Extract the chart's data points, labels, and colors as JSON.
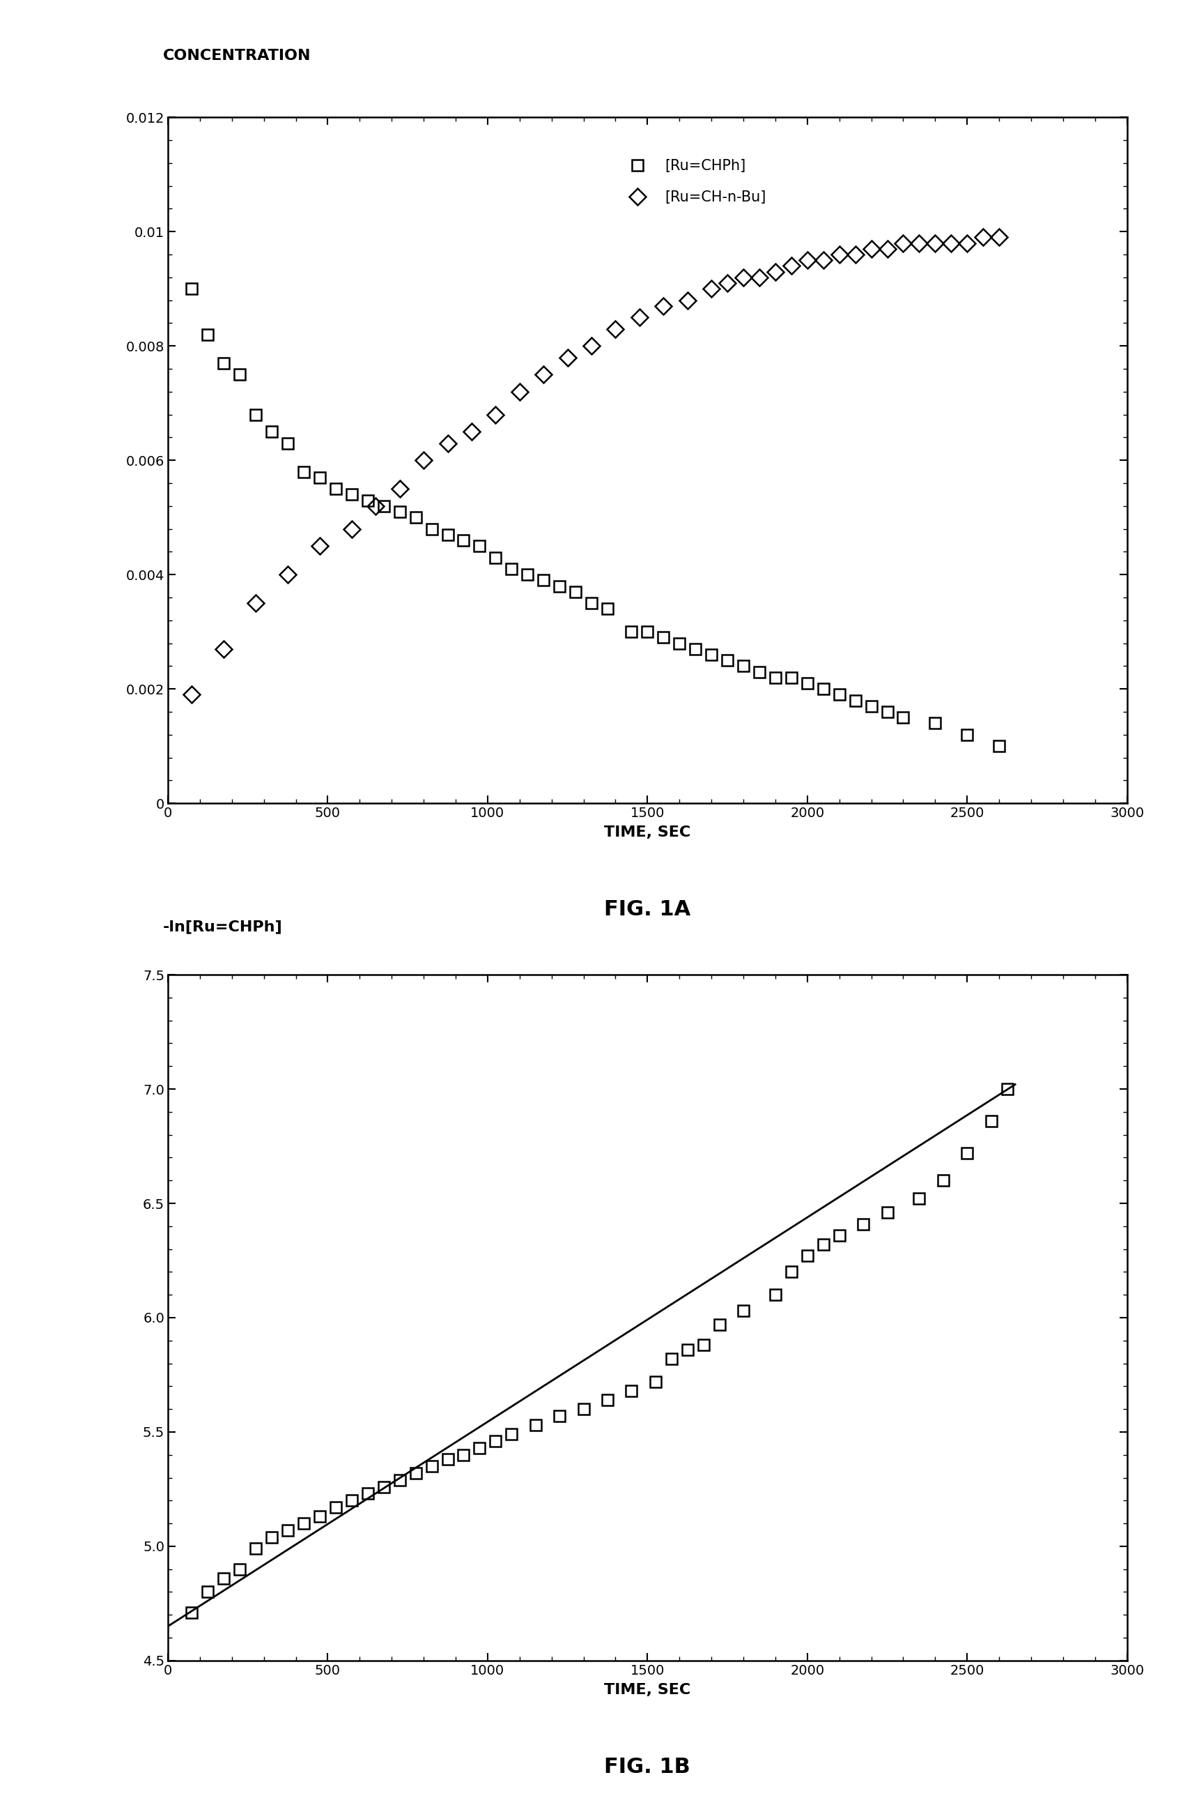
{
  "fig1a": {
    "title": "FIG. 1A",
    "ylabel": "CONCENTRATION",
    "xlabel": "TIME, SEC",
    "xlim": [
      0,
      3000
    ],
    "ylim": [
      0,
      0.012
    ],
    "xticks": [
      0,
      500,
      1000,
      1500,
      2000,
      2500,
      3000
    ],
    "yticks": [
      0,
      0.002,
      0.004,
      0.006,
      0.008,
      0.01,
      0.012
    ],
    "legend1": "[Ru=CHPh]",
    "legend2": "[Ru=CH-n-Bu]",
    "ru_chph_x": [
      75,
      125,
      175,
      225,
      275,
      325,
      375,
      425,
      475,
      525,
      575,
      625,
      675,
      725,
      775,
      825,
      875,
      925,
      975,
      1025,
      1075,
      1125,
      1175,
      1225,
      1275,
      1325,
      1375,
      1450,
      1500,
      1550,
      1600,
      1650,
      1700,
      1750,
      1800,
      1850,
      1900,
      1950,
      2000,
      2050,
      2100,
      2150,
      2200,
      2250,
      2300,
      2400,
      2500,
      2600
    ],
    "ru_chph_y": [
      0.009,
      0.0082,
      0.0077,
      0.0075,
      0.0068,
      0.0065,
      0.0063,
      0.0058,
      0.0057,
      0.0055,
      0.0054,
      0.0053,
      0.0052,
      0.0051,
      0.005,
      0.0048,
      0.0047,
      0.0046,
      0.0045,
      0.0043,
      0.0041,
      0.004,
      0.0039,
      0.0038,
      0.0037,
      0.0035,
      0.0034,
      0.003,
      0.003,
      0.0029,
      0.0028,
      0.0027,
      0.0026,
      0.0025,
      0.0024,
      0.0023,
      0.0022,
      0.0022,
      0.0021,
      0.002,
      0.0019,
      0.0018,
      0.0017,
      0.0016,
      0.0015,
      0.0014,
      0.0012,
      0.001
    ],
    "ru_chnbu_x": [
      75,
      175,
      275,
      375,
      475,
      575,
      650,
      725,
      800,
      875,
      950,
      1025,
      1100,
      1175,
      1250,
      1325,
      1400,
      1475,
      1550,
      1625,
      1700,
      1750,
      1800,
      1850,
      1900,
      1950,
      2000,
      2050,
      2100,
      2150,
      2200,
      2250,
      2300,
      2350,
      2400,
      2450,
      2500,
      2550,
      2600
    ],
    "ru_chnbu_y": [
      0.0019,
      0.0027,
      0.0035,
      0.004,
      0.0045,
      0.0048,
      0.0052,
      0.0055,
      0.006,
      0.0063,
      0.0065,
      0.0068,
      0.0072,
      0.0075,
      0.0078,
      0.008,
      0.0083,
      0.0085,
      0.0087,
      0.0088,
      0.009,
      0.0091,
      0.0092,
      0.0092,
      0.0093,
      0.0094,
      0.0095,
      0.0095,
      0.0096,
      0.0096,
      0.0097,
      0.0097,
      0.0098,
      0.0098,
      0.0098,
      0.0098,
      0.0098,
      0.0099,
      0.0099
    ]
  },
  "fig1b": {
    "title": "FIG. 1B",
    "ylabel": "-ln[Ru=CHPh]",
    "xlabel": "TIME, SEC",
    "xlim": [
      0,
      3000
    ],
    "ylim": [
      4.5,
      7.5
    ],
    "xticks": [
      0,
      500,
      1000,
      1500,
      2000,
      2500,
      3000
    ],
    "yticks": [
      4.5,
      5.0,
      5.5,
      6.0,
      6.5,
      7.0,
      7.5
    ],
    "scatter_x": [
      75,
      125,
      175,
      225,
      275,
      325,
      375,
      425,
      475,
      525,
      575,
      625,
      675,
      725,
      775,
      825,
      875,
      925,
      975,
      1025,
      1075,
      1150,
      1225,
      1300,
      1375,
      1450,
      1525,
      1575,
      1625,
      1675,
      1725,
      1800,
      1900,
      1950,
      2000,
      2050,
      2100,
      2175,
      2250,
      2350,
      2425,
      2500,
      2575,
      2625
    ],
    "scatter_y": [
      4.71,
      4.8,
      4.86,
      4.9,
      4.99,
      5.04,
      5.07,
      5.1,
      5.13,
      5.17,
      5.2,
      5.23,
      5.26,
      5.29,
      5.32,
      5.35,
      5.38,
      5.4,
      5.43,
      5.46,
      5.49,
      5.53,
      5.57,
      5.6,
      5.64,
      5.68,
      5.72,
      5.82,
      5.86,
      5.88,
      5.97,
      6.03,
      6.1,
      6.2,
      6.27,
      6.32,
      6.36,
      6.41,
      6.46,
      6.52,
      6.6,
      6.72,
      6.86,
      7.0
    ],
    "fit_x": [
      0,
      2650
    ],
    "fit_y": [
      4.65,
      7.02
    ]
  },
  "background_color": "#ffffff",
  "axes_color": "#000000",
  "marker_color": "#000000",
  "line_color": "#000000"
}
